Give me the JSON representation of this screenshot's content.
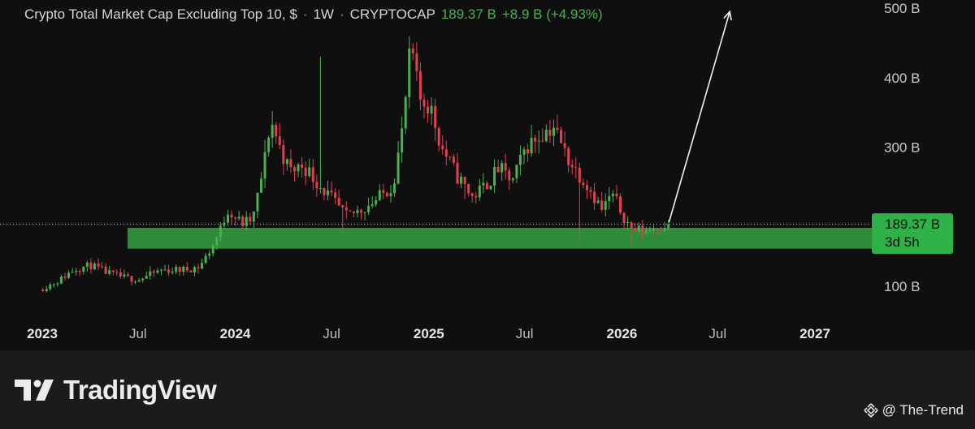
{
  "header": {
    "title": "Crypto Total Market Cap Excluding Top 10, $",
    "interval": "1W",
    "exchange": "CRYPTOCAP",
    "last_price": "189.37 B",
    "change": "+8.9 B (+4.93%)"
  },
  "price_tag": {
    "price": "189.37 B",
    "countdown": "3d 5h"
  },
  "footer": {
    "logo_text": "TradingView",
    "credit": "@ The-Trend"
  },
  "colors": {
    "background": "#0f0f10",
    "up": "#4caf50",
    "down": "#e0404f",
    "support_zone": "#2e8b3a",
    "price_tag": "#2fb14a",
    "text": "#d6d6d6"
  },
  "chart_data": {
    "type": "candlestick",
    "title": "Crypto Total Market Cap Excluding Top 10, $ · 1W · CRYPTOCAP",
    "y_ticks": [
      "500 B",
      "400 B",
      "300 B",
      "100 B"
    ],
    "x_ticks": [
      "2023",
      "Jul",
      "2024",
      "Jul",
      "2025",
      "Jul",
      "2026",
      "Jul",
      "2027"
    ],
    "ylim": [
      64,
      520
    ],
    "last_value": 189.37,
    "support_zone": [
      154,
      184
    ],
    "projection_arrow": {
      "from": [
        "2026-03-31",
        192
      ],
      "to": [
        "2026-07-24",
        495
      ]
    },
    "close_path": [
      [
        "2023-01-02",
        95
      ],
      [
        "2023-02-08",
        108
      ],
      [
        "2023-03-10",
        125
      ],
      [
        "2023-04-10",
        130
      ],
      [
        "2023-05-15",
        118
      ],
      [
        "2023-06-15",
        112
      ],
      [
        "2023-07-10",
        110
      ],
      [
        "2023-08-20",
        123
      ],
      [
        "2023-10-05",
        124
      ],
      [
        "2023-11-01",
        128
      ],
      [
        "2023-11-25",
        156
      ],
      [
        "2023-12-10",
        180
      ],
      [
        "2023-12-25",
        210
      ],
      [
        "2024-01-20",
        190
      ],
      [
        "2024-02-10",
        196
      ],
      [
        "2024-03-01",
        270
      ],
      [
        "2024-03-15",
        340
      ],
      [
        "2024-04-01",
        300
      ],
      [
        "2024-04-20",
        265
      ],
      [
        "2024-05-15",
        275
      ],
      [
        "2024-06-10",
        250
      ],
      [
        "2024-07-05",
        228
      ],
      [
        "2024-08-05",
        200
      ],
      [
        "2024-09-01",
        210
      ],
      [
        "2024-10-01",
        225
      ],
      [
        "2024-11-01",
        245
      ],
      [
        "2024-11-20",
        330
      ],
      [
        "2024-12-05",
        450
      ],
      [
        "2024-12-20",
        370
      ],
      [
        "2025-01-10",
        360
      ],
      [
        "2025-02-01",
        300
      ],
      [
        "2025-03-01",
        260
      ],
      [
        "2025-04-01",
        228
      ],
      [
        "2025-05-01",
        250
      ],
      [
        "2025-05-20",
        270
      ],
      [
        "2025-06-15",
        250
      ],
      [
        "2025-07-10",
        300
      ],
      [
        "2025-08-10",
        320
      ],
      [
        "2025-09-01",
        330
      ],
      [
        "2025-09-20",
        295
      ],
      [
        "2025-10-10",
        270
      ],
      [
        "2025-11-05",
        245
      ],
      [
        "2025-12-01",
        210
      ],
      [
        "2025-12-20",
        232
      ],
      [
        "2026-01-05",
        210
      ],
      [
        "2026-01-25",
        182
      ],
      [
        "2026-02-20",
        180
      ],
      [
        "2026-03-31",
        189
      ]
    ],
    "wick_spikes": [
      [
        "2024-06-12",
        430
      ],
      [
        "2024-07-22",
        173
      ],
      [
        "2025-03-10",
        226
      ],
      [
        "2025-10-10",
        160
      ],
      [
        "2026-01-20",
        158
      ]
    ]
  }
}
